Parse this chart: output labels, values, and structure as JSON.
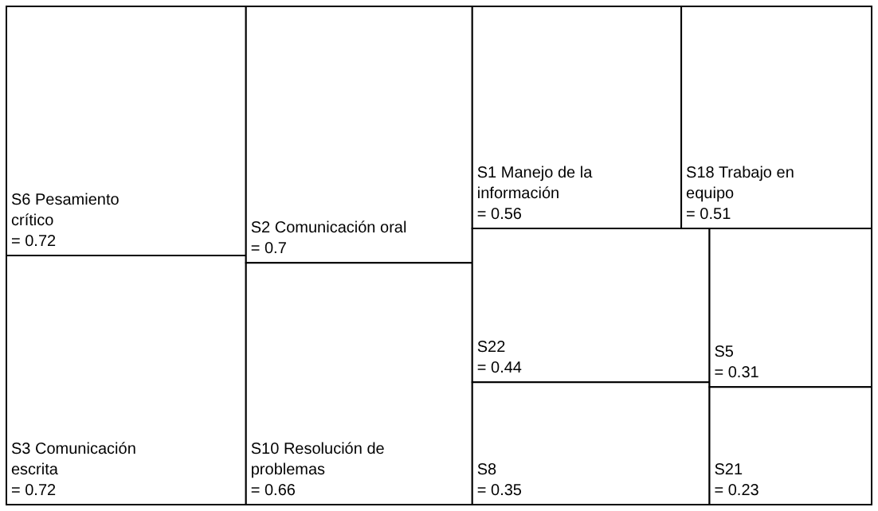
{
  "chart_data": {
    "type": "other",
    "categories": [
      "S6 Pesamiento crítico",
      "S3 Comunicación escrita",
      "S2 Comunicación oral",
      "S10 Resolución de problemas",
      "S1 Manejo de la información",
      "S18 Trabajo en equipo",
      "S22",
      "S8",
      "S5",
      "S21"
    ],
    "values": [
      0.72,
      0.72,
      0.7,
      0.66,
      0.56,
      0.51,
      0.44,
      0.35,
      0.31,
      0.23
    ],
    "value_labels": [
      "= 0.72",
      "= 0.72",
      "= 0.7",
      "= 0.66",
      "= 0.56",
      "= 0.51",
      "= 0.44",
      "= 0.35",
      "= 0.31",
      "= 0.23"
    ],
    "colors": [
      "#ffffff",
      "#ffffff",
      "#ffffff",
      "#ffffff",
      "#ffffff",
      "#ffffff",
      "#ffffff",
      "#ffffff",
      "#ffffff",
      "#ffffff"
    ]
  }
}
